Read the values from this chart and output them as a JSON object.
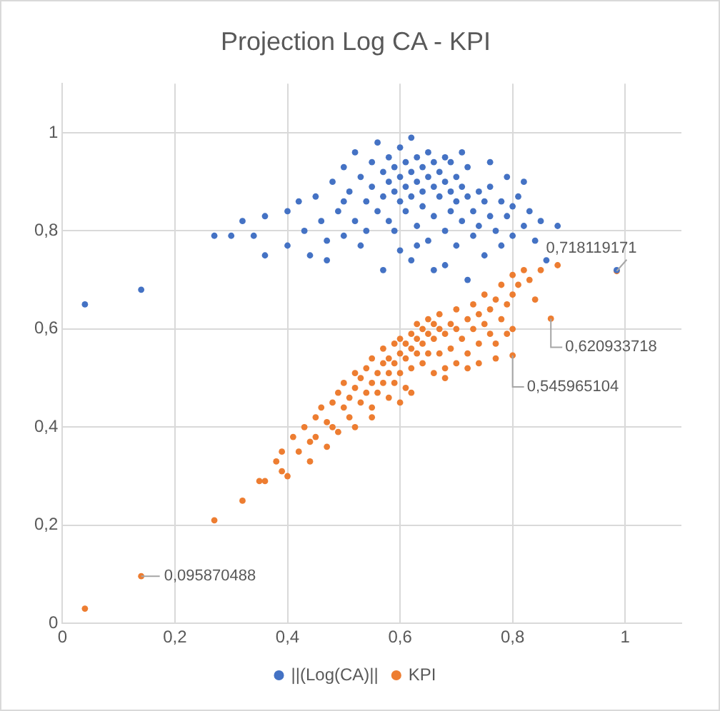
{
  "chart_data": {
    "type": "scatter",
    "title": "Projection Log CA - KPI",
    "xlim": [
      0,
      1.1
    ],
    "ylim": [
      0,
      1.1
    ],
    "xticks": [
      0,
      {
        "value": 0.2,
        "label": "0,2"
      },
      {
        "value": 0.4,
        "label": "0,4"
      },
      {
        "value": 0.6,
        "label": "0,6"
      },
      {
        "value": 0.8,
        "label": "0,8"
      },
      1
    ],
    "yticks": [
      0,
      {
        "value": 0.2,
        "label": "0,2"
      },
      {
        "value": 0.4,
        "label": "0,4"
      },
      {
        "value": 0.6,
        "label": "0,6"
      },
      {
        "value": 0.8,
        "label": "0,8"
      },
      1
    ],
    "grid": true,
    "legend": "bottom",
    "marker": "circle",
    "series": [
      {
        "name": "||(Log(CA)||",
        "color": "#4472c4",
        "x": [
          0.04,
          0.14,
          0.27,
          0.3,
          0.32,
          0.34,
          0.36,
          0.36,
          0.4,
          0.4,
          0.42,
          0.43,
          0.44,
          0.45,
          0.46,
          0.47,
          0.48,
          0.49,
          0.5,
          0.5,
          0.51,
          0.52,
          0.52,
          0.53,
          0.54,
          0.54,
          0.55,
          0.55,
          0.56,
          0.56,
          0.57,
          0.57,
          0.58,
          0.58,
          0.58,
          0.59,
          0.59,
          0.6,
          0.6,
          0.6,
          0.6,
          0.61,
          0.61,
          0.61,
          0.62,
          0.62,
          0.62,
          0.63,
          0.63,
          0.63,
          0.64,
          0.64,
          0.64,
          0.65,
          0.65,
          0.65,
          0.66,
          0.66,
          0.66,
          0.67,
          0.67,
          0.68,
          0.68,
          0.68,
          0.69,
          0.69,
          0.7,
          0.7,
          0.7,
          0.71,
          0.71,
          0.72,
          0.72,
          0.73,
          0.73,
          0.74,
          0.74,
          0.75,
          0.75,
          0.76,
          0.76,
          0.77,
          0.78,
          0.78,
          0.79,
          0.8,
          0.8,
          0.81,
          0.82,
          0.83,
          0.84,
          0.85,
          0.86,
          0.88,
          0.985,
          0.57,
          0.62,
          0.68,
          0.72,
          0.47,
          0.5,
          0.53,
          0.59,
          0.63,
          0.66,
          0.69,
          0.71,
          0.76,
          0.79,
          0.82
        ],
        "values": [
          0.65,
          0.68,
          0.79,
          0.79,
          0.82,
          0.79,
          0.83,
          0.75,
          0.84,
          0.77,
          0.86,
          0.8,
          0.75,
          0.87,
          0.82,
          0.78,
          0.9,
          0.84,
          0.79,
          0.93,
          0.88,
          0.82,
          0.96,
          0.91,
          0.86,
          0.8,
          0.94,
          0.89,
          0.84,
          0.98,
          0.92,
          0.87,
          0.95,
          0.9,
          0.82,
          0.88,
          0.93,
          0.91,
          0.86,
          0.97,
          0.76,
          0.89,
          0.94,
          0.84,
          0.92,
          0.87,
          0.99,
          0.9,
          0.95,
          0.81,
          0.88,
          0.93,
          0.85,
          0.91,
          0.96,
          0.78,
          0.89,
          0.94,
          0.83,
          0.92,
          0.87,
          0.9,
          0.95,
          0.8,
          0.88,
          0.84,
          0.91,
          0.86,
          0.77,
          0.89,
          0.82,
          0.87,
          0.93,
          0.84,
          0.79,
          0.88,
          0.81,
          0.86,
          0.75,
          0.83,
          0.89,
          0.8,
          0.86,
          0.77,
          0.83,
          0.85,
          0.79,
          0.87,
          0.81,
          0.84,
          0.78,
          0.82,
          0.74,
          0.81,
          0.72,
          0.72,
          0.74,
          0.73,
          0.7,
          0.74,
          0.86,
          0.77,
          0.8,
          0.77,
          0.72,
          0.94,
          0.96,
          0.94,
          0.91,
          0.9
        ]
      },
      {
        "name": "KPI",
        "color": "#ed7d31",
        "x": [
          0.04,
          0.14,
          0.27,
          0.32,
          0.35,
          0.36,
          0.38,
          0.39,
          0.39,
          0.41,
          0.42,
          0.43,
          0.44,
          0.45,
          0.45,
          0.46,
          0.47,
          0.48,
          0.48,
          0.49,
          0.5,
          0.5,
          0.51,
          0.51,
          0.52,
          0.52,
          0.53,
          0.53,
          0.54,
          0.54,
          0.55,
          0.55,
          0.55,
          0.56,
          0.56,
          0.57,
          0.57,
          0.57,
          0.58,
          0.58,
          0.58,
          0.59,
          0.59,
          0.59,
          0.6,
          0.6,
          0.6,
          0.61,
          0.61,
          0.61,
          0.62,
          0.62,
          0.62,
          0.63,
          0.63,
          0.63,
          0.64,
          0.64,
          0.64,
          0.65,
          0.65,
          0.65,
          0.66,
          0.66,
          0.67,
          0.67,
          0.67,
          0.68,
          0.68,
          0.69,
          0.69,
          0.7,
          0.7,
          0.7,
          0.71,
          0.72,
          0.72,
          0.73,
          0.73,
          0.74,
          0.74,
          0.75,
          0.75,
          0.76,
          0.76,
          0.77,
          0.77,
          0.78,
          0.78,
          0.79,
          0.79,
          0.8,
          0.8,
          0.8,
          0.8,
          0.81,
          0.82,
          0.83,
          0.84,
          0.85,
          0.868,
          0.88,
          0.985,
          0.6,
          0.62,
          0.55,
          0.52,
          0.68,
          0.66,
          0.72,
          0.74,
          0.77,
          0.47,
          0.44,
          0.4,
          0.49
        ],
        "values": [
          0.03,
          0.096,
          0.21,
          0.25,
          0.29,
          0.29,
          0.33,
          0.35,
          0.31,
          0.38,
          0.35,
          0.4,
          0.37,
          0.42,
          0.38,
          0.44,
          0.41,
          0.45,
          0.4,
          0.47,
          0.44,
          0.49,
          0.46,
          0.42,
          0.48,
          0.51,
          0.45,
          0.5,
          0.47,
          0.52,
          0.49,
          0.54,
          0.44,
          0.51,
          0.47,
          0.53,
          0.49,
          0.56,
          0.51,
          0.54,
          0.46,
          0.53,
          0.57,
          0.49,
          0.55,
          0.51,
          0.58,
          0.54,
          0.57,
          0.48,
          0.56,
          0.59,
          0.52,
          0.58,
          0.55,
          0.61,
          0.57,
          0.53,
          0.6,
          0.59,
          0.55,
          0.62,
          0.58,
          0.61,
          0.6,
          0.55,
          0.63,
          0.59,
          0.52,
          0.61,
          0.56,
          0.6,
          0.64,
          0.53,
          0.58,
          0.62,
          0.55,
          0.6,
          0.65,
          0.57,
          0.63,
          0.61,
          0.67,
          0.59,
          0.64,
          0.66,
          0.57,
          0.62,
          0.69,
          0.65,
          0.59,
          0.67,
          0.71,
          0.546,
          0.6,
          0.69,
          0.72,
          0.7,
          0.66,
          0.72,
          0.621,
          0.73,
          0.718,
          0.45,
          0.47,
          0.42,
          0.4,
          0.5,
          0.51,
          0.52,
          0.53,
          0.54,
          0.36,
          0.33,
          0.3,
          0.39
        ]
      }
    ],
    "annotations": [
      {
        "text": "0,718119171",
        "x": 0.985,
        "y": 0.718
      },
      {
        "text": "0,620933718",
        "x": 0.868,
        "y": 0.621
      },
      {
        "text": "0,545965104",
        "x": 0.8,
        "y": 0.546
      },
      {
        "text": "0,095870488",
        "x": 0.14,
        "y": 0.096
      }
    ]
  }
}
